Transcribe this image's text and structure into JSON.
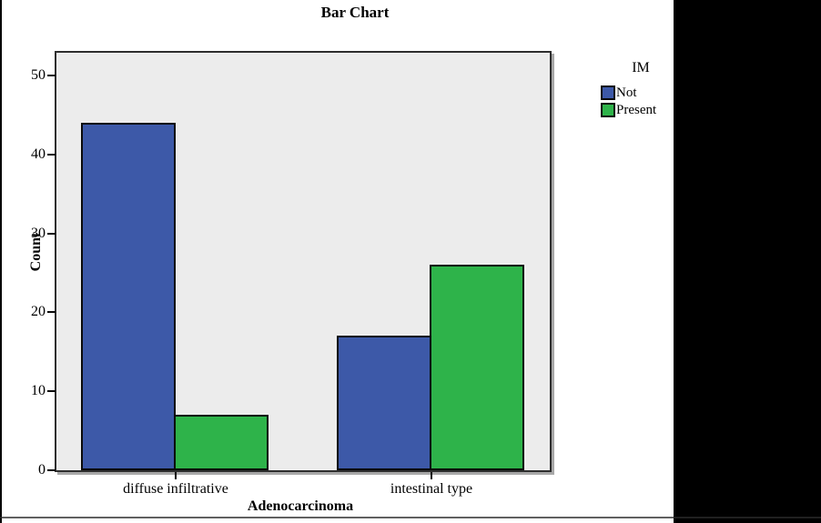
{
  "page": {
    "background": "#ffffff",
    "artifacts": {
      "right_block_color": "#000000",
      "left_line_color": "#000000",
      "bottom_line_color": "#2b2b2b"
    }
  },
  "chart_data": {
    "type": "bar",
    "title": "Bar Chart",
    "xlabel": "Adenocarcinoma",
    "ylabel": "Count",
    "categories": [
      "diffuse infiltrative",
      "intestinal type"
    ],
    "series": [
      {
        "name": "Not",
        "color": "#3d59a8",
        "values": [
          44,
          17
        ]
      },
      {
        "name": "Present",
        "color": "#2eb34a",
        "values": [
          7,
          26
        ]
      }
    ],
    "y_ticks": [
      0,
      10,
      20,
      30,
      40,
      50
    ],
    "ylim": [
      0,
      52.9
    ],
    "grid": false,
    "legend": {
      "title": "IM",
      "position": "right"
    },
    "plot_bg": "#ececec",
    "bar_border_color": "#0a0a0a"
  }
}
